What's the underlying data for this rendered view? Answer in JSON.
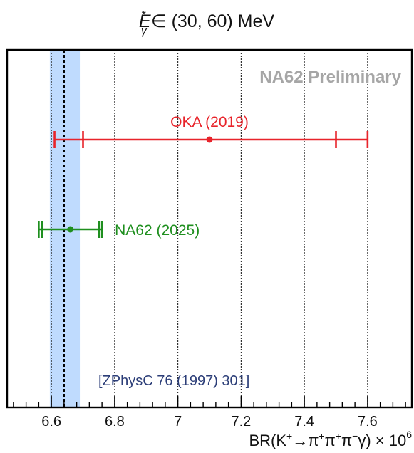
{
  "chart_data": {
    "type": "scatter",
    "title": {
      "symbol": "E",
      "superscript": "*",
      "subscript": "γ",
      "rest": "∈ (30, 60) MeV"
    },
    "xlabel": {
      "prefix": "BR(K",
      "sup1": "+",
      "arrow": "→π",
      "sup2": "+",
      "pi2": "π",
      "sup3": "+",
      "pi3": "π",
      "sup4": "−",
      "tail": "γ) × 10",
      "exp": "6"
    },
    "xlim": [
      6.46,
      7.74
    ],
    "x_ticks": [
      6.6,
      6.8,
      7.0,
      7.2,
      7.4,
      7.6
    ],
    "x_tick_labels": [
      "6.6",
      "6.8",
      "7",
      "7.2",
      "7.4",
      "7.6"
    ],
    "grid": "vertical dotted lines at major ticks",
    "watermark": "NA62 Preliminary",
    "reference": {
      "label": "[ZPhysC 76 (1997) 301]",
      "value": 6.64,
      "band": [
        6.595,
        6.69
      ],
      "color": "#bfdbfe"
    },
    "series": [
      {
        "name": "OKA (2019)",
        "color": "#e8242b",
        "value": 7.1,
        "stat_err": [
          6.7,
          7.5
        ],
        "total_err": [
          6.61,
          7.6
        ],
        "row": 1
      },
      {
        "name": "NA62 (2025)",
        "color": "#1f8f1f",
        "value": 6.66,
        "stat_err": [
          6.57,
          6.75
        ],
        "total_err": [
          6.56,
          6.76
        ],
        "row": 2
      }
    ]
  }
}
